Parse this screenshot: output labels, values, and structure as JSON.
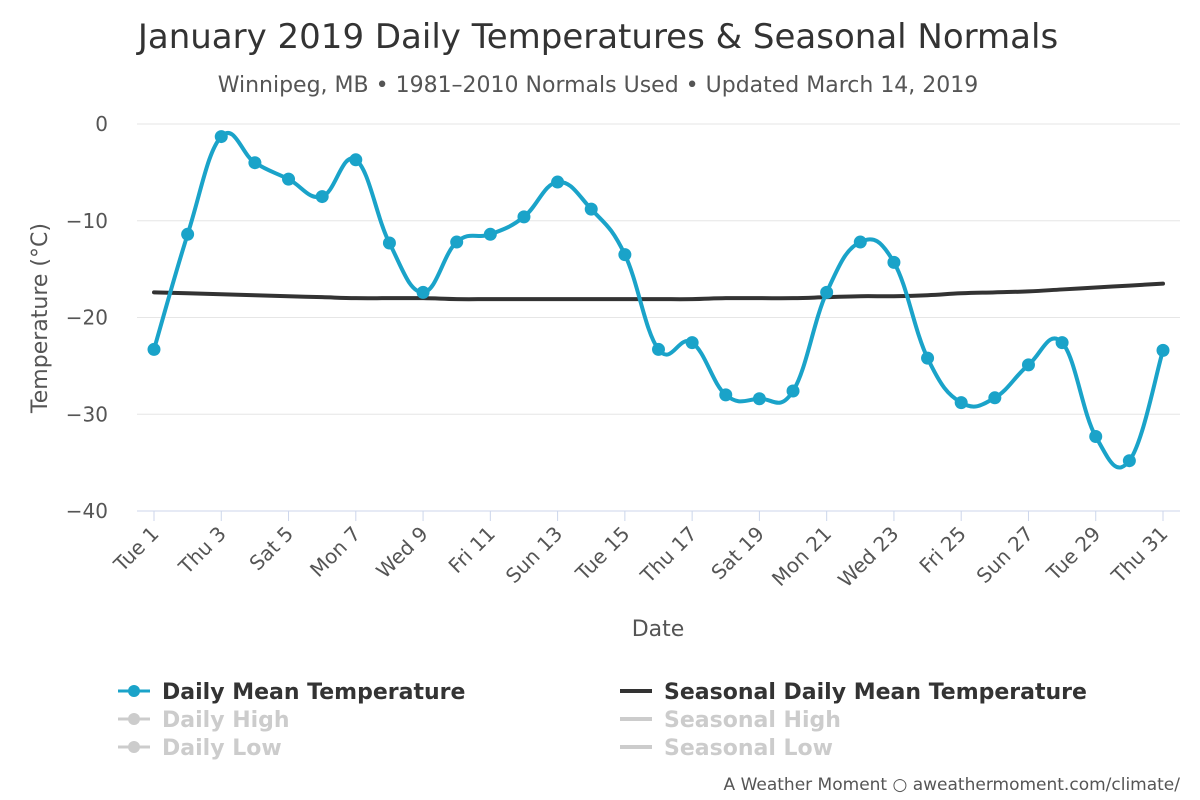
{
  "chart_data": {
    "type": "line",
    "title": "January 2019 Daily Temperatures & Seasonal Normals",
    "subtitle": "Winnipeg, MB • 1981–2010 Normals Used • Updated March 14, 2019",
    "xlabel": "Date",
    "ylabel": "Temperature (°C)",
    "ylim": [
      -40,
      0
    ],
    "yticks": [
      "0",
      "−10",
      "−20",
      "−30",
      "−40"
    ],
    "yticks_values": [
      0,
      -10,
      -20,
      -30,
      -40
    ],
    "grid": true,
    "legend_position": "bottom",
    "x": [
      1,
      2,
      3,
      4,
      5,
      6,
      7,
      8,
      9,
      10,
      11,
      12,
      13,
      14,
      15,
      16,
      17,
      18,
      19,
      20,
      21,
      22,
      23,
      24,
      25,
      26,
      27,
      28,
      29,
      30,
      31
    ],
    "xticks": [
      {
        "day": 1,
        "label": "Tue 1"
      },
      {
        "day": 3,
        "label": "Thu 3"
      },
      {
        "day": 5,
        "label": "Sat 5"
      },
      {
        "day": 7,
        "label": "Mon 7"
      },
      {
        "day": 9,
        "label": "Wed 9"
      },
      {
        "day": 11,
        "label": "Fri 11"
      },
      {
        "day": 13,
        "label": "Sun 13"
      },
      {
        "day": 15,
        "label": "Tue 15"
      },
      {
        "day": 17,
        "label": "Thu 17"
      },
      {
        "day": 19,
        "label": "Sat 19"
      },
      {
        "day": 21,
        "label": "Mon 21"
      },
      {
        "day": 23,
        "label": "Wed 23"
      },
      {
        "day": 25,
        "label": "Fri 25"
      },
      {
        "day": 27,
        "label": "Sun 27"
      },
      {
        "day": 29,
        "label": "Tue 29"
      },
      {
        "day": 31,
        "label": "Thu 31"
      }
    ],
    "series": [
      {
        "name": "Daily Mean Temperature",
        "color": "#1aa3c9",
        "visible": true,
        "markers": true,
        "values": [
          -23.3,
          -11.4,
          -1.3,
          -4.0,
          -5.7,
          -7.5,
          -3.7,
          -12.3,
          -17.4,
          -12.2,
          -11.4,
          -9.6,
          -6.0,
          -8.8,
          -13.5,
          -23.3,
          -22.6,
          -28.0,
          -28.4,
          -27.6,
          -17.4,
          -12.2,
          -14.3,
          -24.2,
          -28.8,
          -28.3,
          -24.9,
          -22.6,
          -32.3,
          -34.8,
          -23.4
        ]
      },
      {
        "name": "Seasonal Daily Mean Temperature",
        "color": "#333333",
        "visible": true,
        "markers": false,
        "values": [
          -17.4,
          -17.5,
          -17.6,
          -17.7,
          -17.8,
          -17.9,
          -18.0,
          -18.0,
          -18.0,
          -18.1,
          -18.1,
          -18.1,
          -18.1,
          -18.1,
          -18.1,
          -18.1,
          -18.1,
          -18.0,
          -18.0,
          -18.0,
          -17.9,
          -17.8,
          -17.8,
          -17.7,
          -17.5,
          -17.4,
          -17.3,
          -17.1,
          -16.9,
          -16.7,
          -16.5
        ]
      }
    ],
    "legend": [
      {
        "label": "Daily Mean Temperature",
        "color": "#1aa3c9",
        "markers": true,
        "active": true
      },
      {
        "label": "Seasonal Daily Mean Temperature",
        "color": "#333333",
        "markers": false,
        "active": true
      },
      {
        "label": "Daily High",
        "color": "#cccccc",
        "markers": true,
        "active": false
      },
      {
        "label": "Seasonal High",
        "color": "#cccccc",
        "markers": false,
        "active": false
      },
      {
        "label": "Daily Low",
        "color": "#cccccc",
        "markers": true,
        "active": false
      },
      {
        "label": "Seasonal Low",
        "color": "#cccccc",
        "markers": false,
        "active": false
      }
    ]
  },
  "credit": "A Weather Moment ○ aweathermoment.com/climate/"
}
